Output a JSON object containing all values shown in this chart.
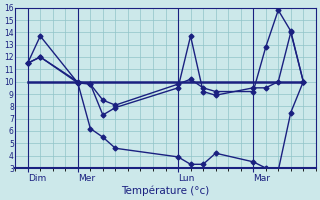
{
  "xlabel": "Température (°c)",
  "ylim": [
    3,
    16
  ],
  "yticks": [
    3,
    4,
    5,
    6,
    7,
    8,
    9,
    10,
    11,
    12,
    13,
    14,
    15,
    16
  ],
  "xlim": [
    0,
    24
  ],
  "background_color": "#cce8ea",
  "line_color": "#1a2080",
  "day_labels": [
    "Dim",
    "Mer",
    "Lun",
    "Mar"
  ],
  "day_positions": [
    1,
    5,
    13,
    19
  ],
  "line_low": {
    "x": [
      1,
      2,
      5,
      6,
      7,
      8,
      13,
      14,
      15,
      16,
      19,
      20,
      21,
      22,
      23
    ],
    "y": [
      11.5,
      13.7,
      9.9,
      6.2,
      5.5,
      4.6,
      3.9,
      3.3,
      3.3,
      4.2,
      3.5,
      3.0,
      2.8,
      7.5,
      10.0
    ]
  },
  "line_mid": {
    "x": [
      1,
      2,
      5,
      6,
      7,
      8,
      13,
      14,
      15,
      16,
      19,
      20,
      21,
      22,
      23
    ],
    "y": [
      11.5,
      12.0,
      9.9,
      9.8,
      7.3,
      7.9,
      9.5,
      13.7,
      9.2,
      8.9,
      9.5,
      9.5,
      10.0,
      14.0,
      10.0
    ]
  },
  "line_flat": {
    "x": [
      1,
      23
    ],
    "y": [
      10.0,
      10.0
    ]
  },
  "line_upper": {
    "x": [
      1,
      2,
      5,
      6,
      7,
      8,
      13,
      14,
      15,
      16,
      19,
      20,
      21,
      22,
      23
    ],
    "y": [
      11.5,
      12.0,
      10.0,
      9.8,
      8.5,
      8.1,
      9.8,
      10.2,
      9.5,
      9.2,
      9.2,
      12.8,
      15.8,
      14.1,
      10.0
    ]
  }
}
